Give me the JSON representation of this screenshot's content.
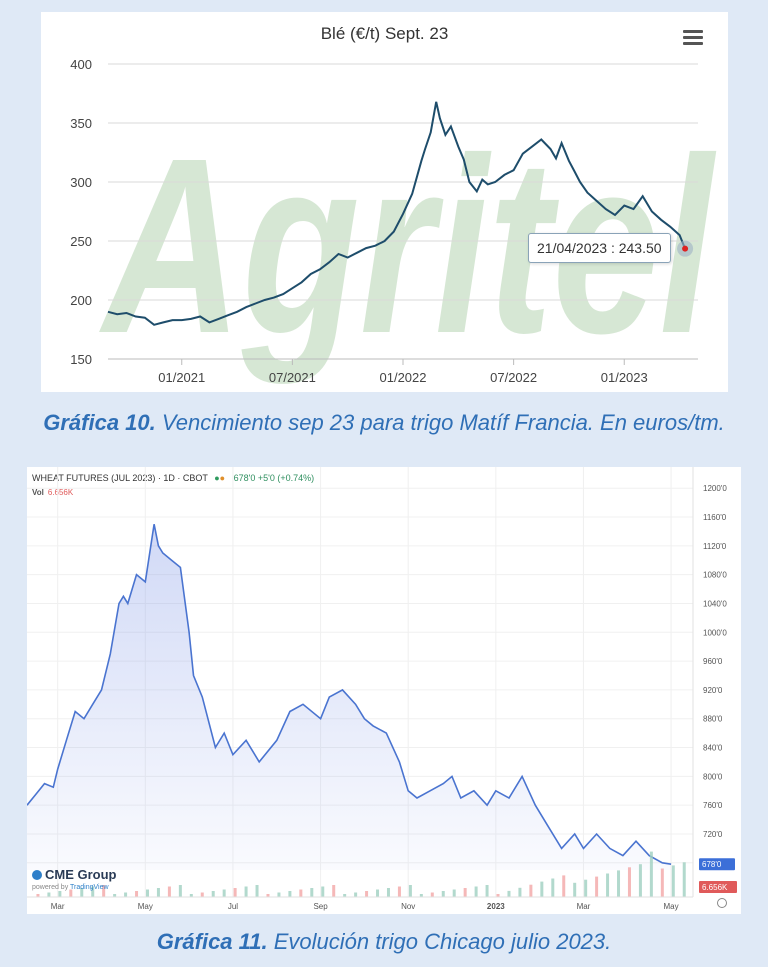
{
  "captions": {
    "c1_bold": "Gráfica 10.",
    "c1_text": " Vencimiento sep 23 para trigo Matíf Francia. En euros/tm.",
    "c2_bold": "Gráfica 11.",
    "c2_text": " Evolución trigo Chicago julio 2023."
  },
  "chart_data": [
    {
      "type": "line",
      "title": "Blé (€/t) Sept. 23",
      "watermark": "Agritel",
      "ylim": [
        150,
        400
      ],
      "yticks": [
        150,
        200,
        250,
        300,
        350,
        400
      ],
      "xtick_labels": [
        "01/2021",
        "07/2021",
        "01/2022",
        "07/2022",
        "01/2023"
      ],
      "xtick_months": [
        4,
        10,
        16,
        22,
        28
      ],
      "xlim_months": [
        0,
        32
      ],
      "grid": true,
      "tooltip": "21/04/2023 : 243.50",
      "color": "#1e4d6b",
      "series": [
        {
          "x_months": [
            0,
            0.5,
            1,
            1.5,
            2,
            2.5,
            3,
            3.5,
            4,
            4.5,
            5,
            5.5,
            6,
            6.5,
            7,
            7.5,
            8,
            8.5,
            9,
            9.5,
            10,
            10.5,
            11,
            11.5,
            12,
            12.5,
            13,
            13.5,
            14,
            14.5,
            15,
            15.5,
            16,
            16.5,
            17,
            17.2,
            17.5,
            17.8,
            18,
            18.3,
            18.6,
            19,
            19.3,
            19.6,
            20,
            20.3,
            20.6,
            21,
            21.5,
            22,
            22.5,
            23,
            23.5,
            24,
            24.3,
            24.6,
            25,
            25.3,
            25.6,
            26,
            26.5,
            27,
            27.5,
            28,
            28.5,
            29,
            29.5,
            30,
            30.5,
            31,
            31.3
          ],
          "y": [
            190,
            188,
            189,
            186,
            185,
            179,
            181,
            183,
            183,
            184,
            186,
            181,
            184,
            187,
            190,
            194,
            197,
            200,
            202,
            205,
            210,
            215,
            222,
            226,
            232,
            239,
            236,
            240,
            244,
            246,
            250,
            258,
            273,
            290,
            318,
            328,
            342,
            368,
            354,
            340,
            347,
            330,
            319,
            300,
            292,
            302,
            298,
            300,
            306,
            310,
            324,
            330,
            336,
            328,
            320,
            333,
            318,
            309,
            300,
            291,
            284,
            277,
            272,
            280,
            277,
            288,
            275,
            268,
            262,
            255,
            243.5
          ]
        }
      ]
    },
    {
      "type": "area",
      "title": "WHEAT FUTURES (JUL 2023) · 1D · CBOT",
      "price_info": "678'0 +5'0 (+0.74%)",
      "volume_label": "Vol",
      "volume_value": "6.656K",
      "last_price": "678'0",
      "ylim": [
        670,
        1210
      ],
      "ytick_labels": [
        "1200'0",
        "1160'0",
        "1120'0",
        "1080'0",
        "1040'0",
        "1000'0",
        "960'0",
        "920'0",
        "880'0",
        "840'0",
        "800'0",
        "760'0",
        "720'0",
        "680'0"
      ],
      "yticks": [
        1200,
        1160,
        1120,
        1080,
        1040,
        1000,
        960,
        920,
        880,
        840,
        800,
        760,
        720,
        680
      ],
      "xtick_labels": [
        "Mar",
        "May",
        "Jul",
        "Sep",
        "Nov",
        "2023",
        "Mar",
        "May"
      ],
      "xtick_months": [
        0,
        2,
        4,
        6,
        8,
        10,
        12,
        14
      ],
      "xlim_months": [
        -0.7,
        14.5
      ],
      "color": "#4a74d0",
      "brand": "CME Group",
      "powered_by": "TradingView",
      "series": [
        {
          "x_months": [
            -0.7,
            -0.5,
            -0.3,
            -0.1,
            0.0,
            0.2,
            0.4,
            0.6,
            0.8,
            1.0,
            1.2,
            1.4,
            1.5,
            1.6,
            1.8,
            2.0,
            2.2,
            2.3,
            2.4,
            2.6,
            2.8,
            3.0,
            3.1,
            3.3,
            3.6,
            3.8,
            4.0,
            4.3,
            4.6,
            5.0,
            5.3,
            5.6,
            6.0,
            6.2,
            6.5,
            6.8,
            7.0,
            7.2,
            7.5,
            7.8,
            8.0,
            8.2,
            8.5,
            8.8,
            9.0,
            9.2,
            9.5,
            9.8,
            10.0,
            10.3,
            10.6,
            10.9,
            11.2,
            11.5,
            11.8,
            12.0,
            12.3,
            12.6,
            12.9,
            13.2,
            13.5,
            13.8,
            14.0
          ],
          "y": [
            760,
            775,
            790,
            785,
            810,
            850,
            890,
            880,
            900,
            920,
            970,
            1040,
            1050,
            1040,
            1080,
            1070,
            1150,
            1120,
            1110,
            1100,
            1090,
            1000,
            940,
            910,
            840,
            860,
            830,
            850,
            820,
            850,
            890,
            900,
            880,
            910,
            920,
            900,
            880,
            870,
            860,
            820,
            780,
            770,
            780,
            790,
            800,
            770,
            780,
            760,
            780,
            770,
            800,
            760,
            730,
            700,
            720,
            700,
            720,
            700,
            690,
            710,
            690,
            680,
            678
          ]
        }
      ]
    }
  ]
}
